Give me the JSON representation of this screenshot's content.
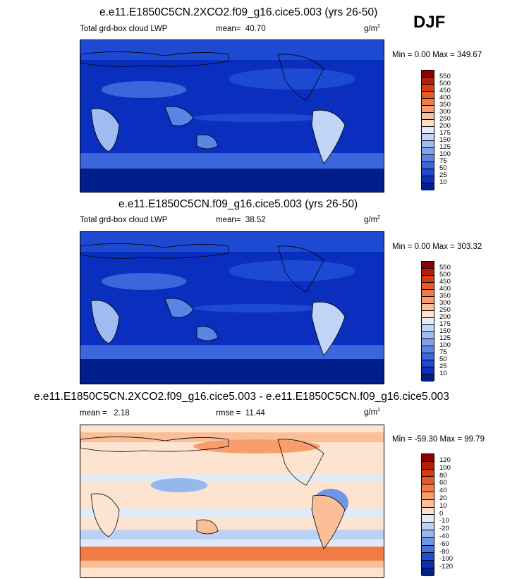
{
  "season": "DJF",
  "units_base": "g/m",
  "units_exp": "2",
  "panels": [
    {
      "title": "e.e11.E1850C5CN.2XCO2.f09_g16.cice5.003 (yrs 26-50)",
      "variable": "Total grd-box cloud LWP",
      "mean_label": "mean=",
      "mean_value": "40.70",
      "minmax": "Min =   0.00 Max = 349.67",
      "colorbar": {
        "levels": [
          "550",
          "500",
          "450",
          "400",
          "350",
          "300",
          "250",
          "200",
          "175",
          "150",
          "125",
          "100",
          "75",
          "50",
          "25",
          "10"
        ],
        "colors": [
          "#8b0000",
          "#b81d0a",
          "#d83a12",
          "#ea5a26",
          "#f27a45",
          "#f89d6c",
          "#fbbf98",
          "#fde2cb",
          "#e2ecfb",
          "#c2d5f6",
          "#9fbcf0",
          "#7ea3ea",
          "#5b85e3",
          "#3a67dc",
          "#1c4ad3",
          "#0a2fbf",
          "#001e8c"
        ]
      }
    },
    {
      "title": "e.e11.E1850C5CN.f09_g16.cice5.003 (yrs 26-50)",
      "variable": "Total grd-box cloud LWP",
      "mean_label": "mean=",
      "mean_value": "38.52",
      "minmax": "Min =   0.00 Max = 303.32",
      "colorbar": {
        "levels": [
          "550",
          "500",
          "450",
          "400",
          "350",
          "300",
          "250",
          "200",
          "175",
          "150",
          "125",
          "100",
          "75",
          "50",
          "25",
          "10"
        ],
        "colors": [
          "#8b0000",
          "#b81d0a",
          "#d83a12",
          "#ea5a26",
          "#f27a45",
          "#f89d6c",
          "#fbbf98",
          "#fde2cb",
          "#e2ecfb",
          "#c2d5f6",
          "#9fbcf0",
          "#7ea3ea",
          "#5b85e3",
          "#3a67dc",
          "#1c4ad3",
          "#0a2fbf",
          "#001e8c"
        ]
      }
    },
    {
      "title": "e.e11.E1850C5CN.2XCO2.f09_g16.cice5.003 - e.e11.E1850C5CN.f09_g16.cice5.003",
      "mean_label": "mean =",
      "mean_value": "2.18",
      "rmse_label": "rmse =",
      "rmse_value": "11.44",
      "minmax": "Min = -59.30 Max =  99.79",
      "colorbar": {
        "levels": [
          "120",
          "100",
          "80",
          "60",
          "40",
          "20",
          "10",
          "0",
          "-10",
          "-20",
          "-40",
          "-60",
          "-80",
          "-100",
          "-120"
        ],
        "colors": [
          "#8b0000",
          "#b81d0a",
          "#d83a12",
          "#ea5a26",
          "#f27a45",
          "#f89d6c",
          "#fbbf98",
          "#fde4d0",
          "#dfeafb",
          "#bcd2f5",
          "#96b6ee",
          "#6f96e6",
          "#4574dd",
          "#1f4fd4",
          "#0a30b8",
          "#001e8c"
        ]
      }
    }
  ]
}
